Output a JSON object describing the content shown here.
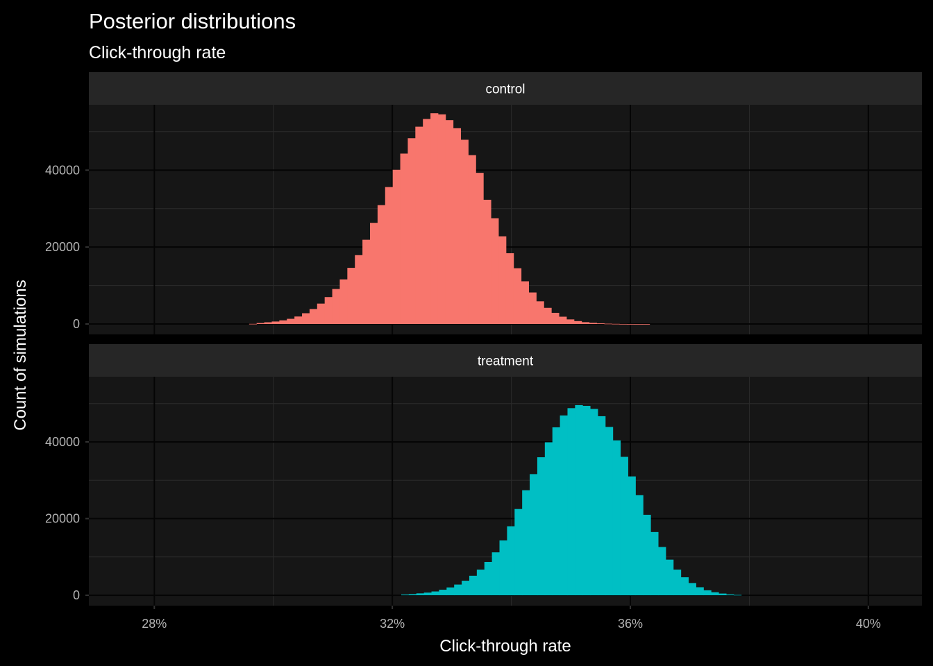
{
  "chart_data": {
    "type": "bar",
    "title": "Posterior distributions",
    "subtitle": "Click-through rate",
    "xlabel": "Click-through rate",
    "ylabel": "Count of simulations",
    "x_ticks": [
      {
        "value": 0.28,
        "label": "28%"
      },
      {
        "value": 0.32,
        "label": "32%"
      },
      {
        "value": 0.36,
        "label": "36%"
      },
      {
        "value": 0.4,
        "label": "40%"
      }
    ],
    "y_ticks": [
      {
        "value": 0,
        "label": "0"
      },
      {
        "value": 20000,
        "label": "20000"
      },
      {
        "value": 40000,
        "label": "40000"
      }
    ],
    "xlim": [
      0.269,
      0.409
    ],
    "ylim": [
      -2700,
      57000
    ],
    "bin_width": 0.00127,
    "grid": true,
    "facets": [
      {
        "name": "control",
        "color": "#F8766D",
        "x_start": 0.2845,
        "values": [
          0,
          0,
          0,
          0,
          0,
          0,
          0,
          0,
          0,
          50,
          250,
          450,
          650,
          950,
          1350,
          1950,
          2800,
          3900,
          5300,
          7000,
          9100,
          11600,
          14600,
          17900,
          21900,
          26300,
          30900,
          35600,
          40100,
          44300,
          48300,
          51300,
          53300,
          54800,
          54500,
          53000,
          50900,
          47900,
          43900,
          39300,
          32300,
          27500,
          22800,
          18400,
          14500,
          11100,
          8200,
          5900,
          4200,
          2900,
          1900,
          1200,
          760,
          480,
          300,
          170,
          90,
          50,
          20,
          10,
          5,
          2,
          0
        ]
      },
      {
        "name": "treatment",
        "color": "#00BFC4",
        "x_start": 0.3215,
        "values": [
          200,
          300,
          500,
          700,
          1000,
          1450,
          2050,
          2800,
          3800,
          5100,
          6700,
          8700,
          11200,
          14300,
          18000,
          22500,
          27400,
          31600,
          36000,
          39900,
          43800,
          46900,
          48800,
          49600,
          49400,
          48600,
          46700,
          43900,
          40400,
          36100,
          31000,
          26100,
          21000,
          16500,
          12600,
          9300,
          6700,
          4700,
          3200,
          2100,
          1300,
          800,
          450,
          230,
          100
        ]
      }
    ]
  }
}
